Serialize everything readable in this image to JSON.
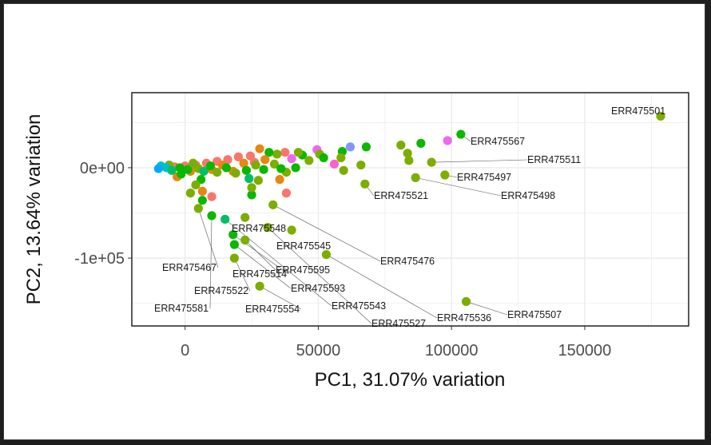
{
  "chart_data": {
    "type": "scatter",
    "title": "",
    "xlabel": "PC1, 31.07% variation",
    "ylabel": "PC2, 13.64% variation",
    "xlim": [
      -20000,
      189000
    ],
    "ylim": [
      -175000,
      83000
    ],
    "x_ticks": [
      0,
      50000,
      100000,
      150000
    ],
    "x_tick_labels": [
      "0",
      "50000",
      "100000",
      "150000"
    ],
    "y_ticks": [
      0,
      -100000
    ],
    "y_tick_labels": [
      "0e+00",
      "-1e+05"
    ],
    "grid": true,
    "legend": "none",
    "colors": {
      "olive": "#7CAE00",
      "green": "#0CB702",
      "teal_green": "#00BE67",
      "salmon": "#F8766D",
      "orange": "#E68613",
      "cyan": "#00BFC4",
      "sky": "#00A9FF",
      "blue": "#8494FF",
      "magenta": "#ED68ED",
      "pink": "#FF61CC"
    },
    "points": [
      {
        "x": 178500,
        "y": 57000,
        "color": "#7CAE00",
        "label": "ERR475501"
      },
      {
        "x": 103500,
        "y": 37000,
        "color": "#0CB702",
        "label": "ERR475567"
      },
      {
        "x": 98500,
        "y": 30000,
        "color": "#ED68ED"
      },
      {
        "x": 88500,
        "y": 27000,
        "color": "#0CB702"
      },
      {
        "x": 92500,
        "y": 6000,
        "color": "#7CAE00",
        "label": "ERR475511"
      },
      {
        "x": 97500,
        "y": -8000,
        "color": "#7CAE00",
        "label": "ERR475497"
      },
      {
        "x": 86500,
        "y": -11000,
        "color": "#7CAE00",
        "label": "ERR475498"
      },
      {
        "x": 67500,
        "y": -18000,
        "color": "#7CAE00",
        "label": "ERR475521"
      },
      {
        "x": 33000,
        "y": -41000,
        "color": "#7CAE00",
        "label": "ERR475476"
      },
      {
        "x": 105500,
        "y": -148000,
        "color": "#7CAE00",
        "label": "ERR475507"
      },
      {
        "x": 5000,
        "y": -45000,
        "color": "#7CAE00",
        "label": "ERR475467"
      },
      {
        "x": 22500,
        "y": -55000,
        "color": "#7CAE00",
        "label": "ERR475548"
      },
      {
        "x": 40000,
        "y": -69000,
        "color": "#7CAE00",
        "label": "ERR475545"
      },
      {
        "x": 18000,
        "y": -74000,
        "color": "#0CB702",
        "label": "ERR475514"
      },
      {
        "x": 22500,
        "y": -80000,
        "color": "#7CAE00",
        "label": "ERR475595"
      },
      {
        "x": 18500,
        "y": -85000,
        "color": "#0CB702",
        "label": "ERR475593"
      },
      {
        "x": 53000,
        "y": -96000,
        "color": "#7CAE00",
        "label": "ERR475536"
      },
      {
        "x": 18500,
        "y": -100000,
        "color": "#7CAE00",
        "label": "ERR475522"
      },
      {
        "x": 28000,
        "y": -131000,
        "color": "#7CAE00",
        "label": "ERR475554"
      },
      {
        "x": 10000,
        "y": -53000,
        "color": "#0CB702",
        "label": "ERR475581"
      },
      {
        "x": 15000,
        "y": -57000,
        "color": "#00BE67",
        "label": "ERR475543"
      },
      {
        "x": 31000,
        "y": -66000,
        "color": "#7CAE00",
        "label": "ERR475527"
      },
      {
        "x": 62000,
        "y": 23000,
        "color": "#8494FF"
      },
      {
        "x": 68000,
        "y": 23000,
        "color": "#0CB702"
      },
      {
        "x": 81000,
        "y": 25000,
        "color": "#7CAE00"
      },
      {
        "x": 83500,
        "y": 16000,
        "color": "#7CAE00"
      },
      {
        "x": 84000,
        "y": 8000,
        "color": "#7CAE00"
      },
      {
        "x": 59000,
        "y": 18000,
        "color": "#0CB702"
      },
      {
        "x": 56000,
        "y": 4000,
        "color": "#FF61CC"
      },
      {
        "x": 58500,
        "y": 11000,
        "color": "#7CAE00"
      },
      {
        "x": 66000,
        "y": 3000,
        "color": "#7CAE00"
      },
      {
        "x": 59500,
        "y": -3000,
        "color": "#7CAE00"
      },
      {
        "x": 49500,
        "y": 20000,
        "color": "#ED68ED"
      },
      {
        "x": 50500,
        "y": 15000,
        "color": "#7CAE00"
      },
      {
        "x": 44000,
        "y": 14000,
        "color": "#0CB702"
      },
      {
        "x": 46500,
        "y": 8000,
        "color": "#7CAE00"
      },
      {
        "x": 41500,
        "y": 0,
        "color": "#0CB702"
      },
      {
        "x": 38000,
        "y": -5000,
        "color": "#7CAE00"
      },
      {
        "x": 37500,
        "y": 17000,
        "color": "#F8766D"
      },
      {
        "x": 34500,
        "y": 15000,
        "color": "#7CAE00"
      },
      {
        "x": 31500,
        "y": 17000,
        "color": "#0CB702"
      },
      {
        "x": 28000,
        "y": 21000,
        "color": "#E68613"
      },
      {
        "x": 24500,
        "y": 13000,
        "color": "#F8766D"
      },
      {
        "x": 20000,
        "y": 12000,
        "color": "#F8766D"
      },
      {
        "x": 16000,
        "y": 9000,
        "color": "#F8766D"
      },
      {
        "x": 12000,
        "y": 7000,
        "color": "#F8766D"
      },
      {
        "x": 8000,
        "y": 5000,
        "color": "#F8766D"
      },
      {
        "x": 4000,
        "y": 3000,
        "color": "#F8766D"
      },
      {
        "x": 0,
        "y": 2000,
        "color": "#F8766D"
      },
      {
        "x": -4000,
        "y": 1000,
        "color": "#F8766D"
      },
      {
        "x": 14000,
        "y": 3000,
        "color": "#E68613"
      },
      {
        "x": 22000,
        "y": 5000,
        "color": "#E68613"
      },
      {
        "x": 10000,
        "y": -2000,
        "color": "#E68613"
      },
      {
        "x": 18000,
        "y": -4000,
        "color": "#E68613"
      },
      {
        "x": 2000,
        "y": -4000,
        "color": "#E68613"
      },
      {
        "x": 26000,
        "y": 6000,
        "color": "#F8766D"
      },
      {
        "x": 30000,
        "y": 9000,
        "color": "#E68613"
      },
      {
        "x": -6000,
        "y": 3000,
        "color": "#7CAE00"
      },
      {
        "x": -2000,
        "y": 0,
        "color": "#0CB702"
      },
      {
        "x": 1000,
        "y": -2000,
        "color": "#0CB702"
      },
      {
        "x": 5000,
        "y": -1000,
        "color": "#7CAE00"
      },
      {
        "x": 7000,
        "y": -4000,
        "color": "#00BE67"
      },
      {
        "x": 9500,
        "y": 2000,
        "color": "#0CB702"
      },
      {
        "x": 12000,
        "y": -5000,
        "color": "#7CAE00"
      },
      {
        "x": 15500,
        "y": 0,
        "color": "#0CB702"
      },
      {
        "x": 19000,
        "y": -6000,
        "color": "#7CAE00"
      },
      {
        "x": 23000,
        "y": -3000,
        "color": "#0CB702"
      },
      {
        "x": 26500,
        "y": 3000,
        "color": "#7CAE00"
      },
      {
        "x": 29500,
        "y": -2000,
        "color": "#0CB702"
      },
      {
        "x": 33500,
        "y": 4000,
        "color": "#7CAE00"
      },
      {
        "x": 36000,
        "y": -1000,
        "color": "#0CB702"
      },
      {
        "x": 24000,
        "y": -12000,
        "color": "#00BE67"
      },
      {
        "x": 27500,
        "y": -14000,
        "color": "#7CAE00"
      },
      {
        "x": 6000,
        "y": -13000,
        "color": "#0CB702"
      },
      {
        "x": 4000,
        "y": -19000,
        "color": "#7CAE00"
      },
      {
        "x": 2000,
        "y": -28000,
        "color": "#7CAE00"
      },
      {
        "x": 6500,
        "y": -36000,
        "color": "#0CB702"
      },
      {
        "x": 10000,
        "y": -32000,
        "color": "#F8766D"
      },
      {
        "x": 6500,
        "y": -26000,
        "color": "#E68613"
      },
      {
        "x": 25000,
        "y": -30000,
        "color": "#0CB702"
      },
      {
        "x": 25000,
        "y": -22000,
        "color": "#7CAE00"
      },
      {
        "x": 35500,
        "y": -13000,
        "color": "#E68613"
      },
      {
        "x": 38000,
        "y": -28000,
        "color": "#F8766D"
      },
      {
        "x": -3000,
        "y": -10000,
        "color": "#E68613"
      },
      {
        "x": -9000,
        "y": 2000,
        "color": "#00BFC4"
      },
      {
        "x": -10000,
        "y": -1000,
        "color": "#00A9FF"
      },
      {
        "x": -7000,
        "y": 0,
        "color": "#00BFC4"
      },
      {
        "x": -5000,
        "y": -3000,
        "color": "#00BE67"
      },
      {
        "x": -1500,
        "y": -7000,
        "color": "#0CB702"
      },
      {
        "x": 3000,
        "y": 5000,
        "color": "#7CAE00"
      },
      {
        "x": 40000,
        "y": 10000,
        "color": "#ED68ED"
      },
      {
        "x": 42500,
        "y": 17000,
        "color": "#7CAE00"
      },
      {
        "x": 52000,
        "y": 11000,
        "color": "#0CB702"
      }
    ],
    "point_labels": [
      "ERR475501",
      "ERR475567",
      "ERR475511",
      "ERR475497",
      "ERR475498",
      "ERR475521",
      "ERR475476",
      "ERR475507",
      "ERR475467",
      "ERR475548",
      "ERR475545",
      "ERR475514",
      "ERR475595",
      "ERR475593",
      "ERR475536",
      "ERR475522",
      "ERR475554",
      "ERR475581",
      "ERR475543",
      "ERR475527"
    ]
  }
}
